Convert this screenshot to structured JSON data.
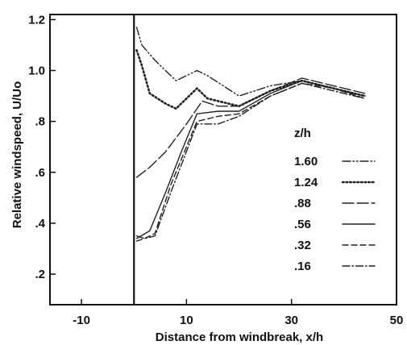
{
  "chart_data": {
    "type": "line",
    "xlabel": "Distance  from  windbreak,  x/h",
    "ylabel": "Relative  windspeed,  U/Uo",
    "xlim": [
      -16,
      50
    ],
    "ylim": [
      0.08,
      1.22
    ],
    "x_ticks": [
      -10,
      10,
      30,
      50
    ],
    "x_tick_labels": [
      "-10",
      "10",
      "30",
      "50"
    ],
    "y_ticks": [
      0.2,
      0.4,
      0.6,
      0.8,
      1.0,
      1.2
    ],
    "y_tick_labels": [
      ".2",
      ".4",
      ".6",
      ".8",
      "1.0",
      "1.2"
    ],
    "windbreak_x": 0,
    "legend_title": "z/h",
    "legend_position": "right",
    "series": [
      {
        "name": "1.60",
        "style": "dashdotdot",
        "x": [
          0.5,
          1.5,
          4,
          8,
          12,
          14,
          20,
          26,
          32,
          38,
          44
        ],
        "y": [
          1.17,
          1.1,
          1.04,
          0.96,
          1.0,
          0.98,
          0.9,
          0.94,
          0.96,
          0.93,
          0.9
        ]
      },
      {
        "name": "1.24",
        "style": "dotted",
        "x": [
          0.5,
          1.5,
          3,
          6,
          8,
          12,
          14,
          20,
          26,
          32,
          38,
          44
        ],
        "y": [
          1.08,
          1.02,
          0.91,
          0.87,
          0.85,
          0.93,
          0.89,
          0.86,
          0.92,
          0.96,
          0.93,
          0.9
        ]
      },
      {
        "name": ".88",
        "style": "longdash",
        "x": [
          0.5,
          3,
          6,
          10,
          13,
          16,
          20,
          26,
          32,
          38,
          44
        ],
        "y": [
          0.58,
          0.62,
          0.68,
          0.79,
          0.88,
          0.86,
          0.86,
          0.92,
          0.97,
          0.94,
          0.91
        ]
      },
      {
        "name": ".56",
        "style": "solid",
        "x": [
          0.5,
          3,
          6,
          9,
          12,
          16,
          20,
          26,
          32,
          38,
          44
        ],
        "y": [
          0.34,
          0.37,
          0.52,
          0.68,
          0.83,
          0.84,
          0.84,
          0.91,
          0.96,
          0.93,
          0.9
        ]
      },
      {
        "name": ".32",
        "style": "dashed",
        "x": [
          0.5,
          2,
          4,
          7,
          12,
          16,
          20,
          26,
          32,
          38,
          44
        ],
        "y": [
          0.33,
          0.34,
          0.36,
          0.55,
          0.8,
          0.82,
          0.83,
          0.9,
          0.95,
          0.93,
          0.89
        ]
      },
      {
        "name": ".16",
        "style": "dashdot",
        "x": [
          0.5,
          2,
          4,
          7,
          12,
          16,
          20,
          26,
          32,
          38,
          44
        ],
        "y": [
          0.35,
          0.34,
          0.35,
          0.52,
          0.79,
          0.79,
          0.82,
          0.9,
          0.95,
          0.92,
          0.89
        ]
      }
    ]
  }
}
